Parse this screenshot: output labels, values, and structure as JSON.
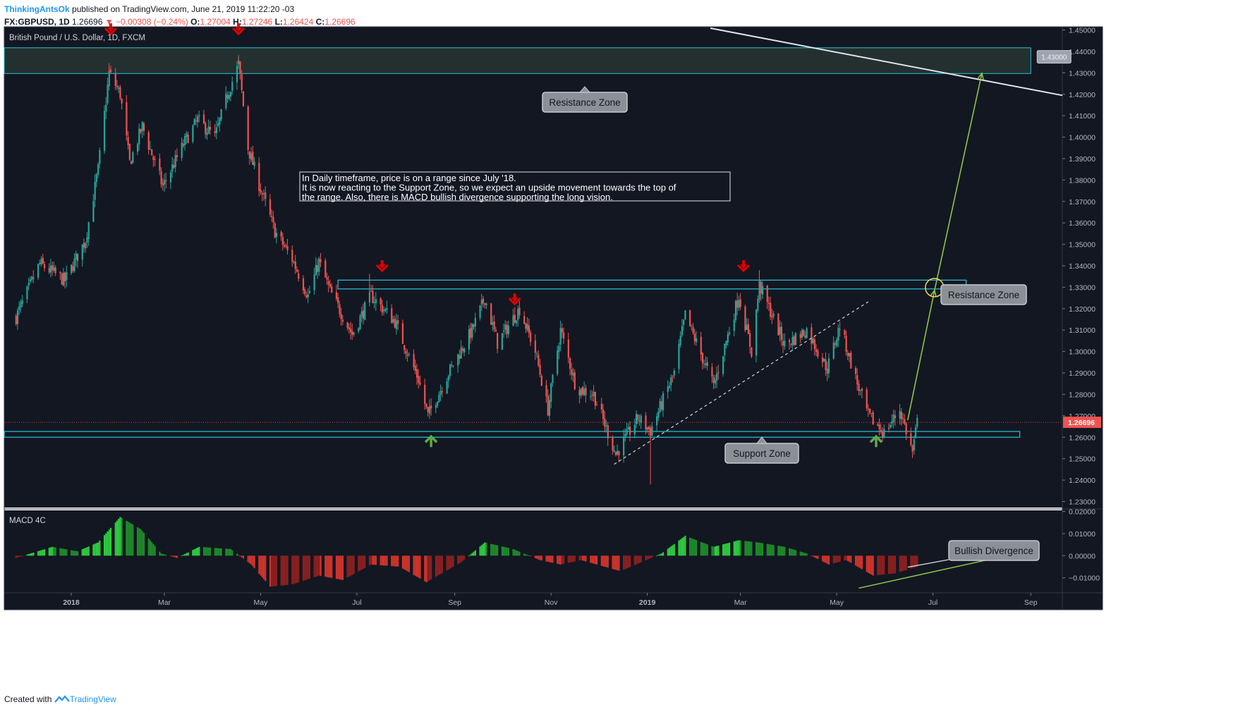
{
  "header": {
    "author": "ThinkingAntsOk",
    "published": "published on TradingView.com, June 21, 2019 11:22:20 -03",
    "symbol": "FX:GBPUSD, 1D",
    "last": "1.26696",
    "change": "−0.00308 (−0.24%)",
    "o_label": "O:",
    "o": "1.27004",
    "h_label": "H:",
    "h": "1.27246",
    "l_label": "L:",
    "l": "1.26424",
    "c_label": "C:",
    "c": "1.26696"
  },
  "footer": {
    "created": "Created with",
    "brand": "TradingView"
  },
  "colors": {
    "background": "#131722",
    "up": "#26a69a",
    "down": "#ef5350",
    "zone": "#26c6da",
    "macd_up": "#2ecc40",
    "macd_down": "#d0342c",
    "arrow_down": "#e00000",
    "arrow_up": "#5fa84a",
    "projection": "#8bc34a"
  },
  "chart_data": [
    {
      "type": "candlestick",
      "title": "British Pound / U.S. Dollar, 1D, FXCM",
      "x_labels": [
        "2018",
        "Mar",
        "May",
        "Jul",
        "Sep",
        "Nov",
        "2019",
        "Mar",
        "May",
        "Jul",
        "Sep"
      ],
      "x_label_dates": [
        "2018-01-01",
        "2018-03-01",
        "2018-05-01",
        "2018-07-01",
        "2018-09-01",
        "2018-11-01",
        "2019-01-01",
        "2019-03-01",
        "2019-05-01",
        "2019-07-01",
        "2019-09-01"
      ],
      "y_ticks": [
        "1.45000",
        "1.44000",
        "1.43000",
        "1.42000",
        "1.41000",
        "1.40000",
        "1.39000",
        "1.38000",
        "1.37000",
        "1.36000",
        "1.35000",
        "1.34000",
        "1.33000",
        "1.32000",
        "1.31000",
        "1.30000",
        "1.29000",
        "1.28000",
        "1.27000",
        "1.26000",
        "1.25000",
        "1.24000",
        "1.23000"
      ],
      "ylim": [
        1.2272,
        1.4515
      ],
      "price_path": [
        [
          "2017-11-27",
          1.316
        ],
        [
          "2017-12-12",
          1.341
        ],
        [
          "2017-12-28",
          1.333
        ],
        [
          "2018-01-10",
          1.352
        ],
        [
          "2018-01-18",
          1.385
        ],
        [
          "2018-01-25",
          1.43
        ],
        [
          "2018-02-01",
          1.42
        ],
        [
          "2018-02-07",
          1.388
        ],
        [
          "2018-02-15",
          1.405
        ],
        [
          "2018-02-28",
          1.377
        ],
        [
          "2018-03-14",
          1.398
        ],
        [
          "2018-03-22",
          1.408
        ],
        [
          "2018-04-02",
          1.4
        ],
        [
          "2018-04-10",
          1.42
        ],
        [
          "2018-04-17",
          1.434
        ],
        [
          "2018-04-23",
          1.395
        ],
        [
          "2018-04-30",
          1.378
        ],
        [
          "2018-05-10",
          1.356
        ],
        [
          "2018-05-21",
          1.343
        ],
        [
          "2018-05-31",
          1.326
        ],
        [
          "2018-06-07",
          1.342
        ],
        [
          "2018-06-14",
          1.328
        ],
        [
          "2018-06-28",
          1.308
        ],
        [
          "2018-07-10",
          1.326
        ],
        [
          "2018-07-25",
          1.314
        ],
        [
          "2018-08-09",
          1.287
        ],
        [
          "2018-08-15",
          1.27
        ],
        [
          "2018-08-28",
          1.29
        ],
        [
          "2018-09-12",
          1.31
        ],
        [
          "2018-09-20",
          1.325
        ],
        [
          "2018-09-28",
          1.304
        ],
        [
          "2018-10-12",
          1.32
        ],
        [
          "2018-10-22",
          1.3
        ],
        [
          "2018-10-30",
          1.273
        ],
        [
          "2018-11-07",
          1.31
        ],
        [
          "2018-11-17",
          1.283
        ],
        [
          "2018-11-28",
          1.28
        ],
        [
          "2018-12-12",
          1.252
        ],
        [
          "2018-12-26",
          1.269
        ],
        [
          "2019-01-03",
          1.263
        ],
        [
          "2019-01-18",
          1.29
        ],
        [
          "2019-01-25",
          1.317
        ],
        [
          "2019-02-12",
          1.284
        ],
        [
          "2019-02-28",
          1.326
        ],
        [
          "2019-03-08",
          1.3
        ],
        [
          "2019-03-13",
          1.331
        ],
        [
          "2019-03-29",
          1.303
        ],
        [
          "2019-04-12",
          1.31
        ],
        [
          "2019-04-25",
          1.292
        ],
        [
          "2019-05-03",
          1.312
        ],
        [
          "2019-05-14",
          1.285
        ],
        [
          "2019-05-21",
          1.27
        ],
        [
          "2019-05-31",
          1.262
        ],
        [
          "2019-06-10",
          1.273
        ],
        [
          "2019-06-18",
          1.253
        ],
        [
          "2019-06-21",
          1.267
        ]
      ],
      "last_price_label": "1.26696",
      "projection_label": "1.43000",
      "annotations": {
        "note": [
          "In Daily timeframe, price is on a range since July '18.",
          "It is now reacting to the Support Zone, so we expect an upside movement towards the top of",
          "the range. Also, there is MACD bullish divergence supporting the long vision."
        ],
        "resistance_top": "Resistance Zone",
        "resistance_mid": "Resistance Zone",
        "support": "Support Zone"
      }
    },
    {
      "type": "bar",
      "title": "MACD 4C",
      "y_ticks": [
        "0.02000",
        "0.01000",
        "0.00000",
        "−0.01000"
      ],
      "ylim": [
        -0.0168,
        0.0205
      ],
      "histogram_path": [
        [
          "2017-11-27",
          -0.001
        ],
        [
          "2017-12-20",
          0.004
        ],
        [
          "2018-01-05",
          0.002
        ],
        [
          "2018-01-18",
          0.006
        ],
        [
          "2018-02-01",
          0.0175
        ],
        [
          "2018-02-14",
          0.012
        ],
        [
          "2018-02-27",
          0.001
        ],
        [
          "2018-03-09",
          -0.001
        ],
        [
          "2018-03-23",
          0.004
        ],
        [
          "2018-04-12",
          0.003
        ],
        [
          "2018-04-25",
          -0.004
        ],
        [
          "2018-05-07",
          -0.014
        ],
        [
          "2018-05-21",
          -0.013
        ],
        [
          "2018-06-07",
          -0.009
        ],
        [
          "2018-06-22",
          -0.011
        ],
        [
          "2018-07-10",
          -0.004
        ],
        [
          "2018-07-28",
          -0.005
        ],
        [
          "2018-08-14",
          -0.012
        ],
        [
          "2018-09-05",
          -0.003
        ],
        [
          "2018-09-20",
          0.006
        ],
        [
          "2018-10-08",
          0.003
        ],
        [
          "2018-10-25",
          -0.002
        ],
        [
          "2018-11-07",
          -0.004
        ],
        [
          "2018-11-20",
          -0.002
        ],
        [
          "2018-12-15",
          -0.007
        ],
        [
          "2018-12-28",
          -0.003
        ],
        [
          "2019-01-10",
          0.001
        ],
        [
          "2019-01-25",
          0.009
        ],
        [
          "2019-02-12",
          0.004
        ],
        [
          "2019-02-28",
          0.007
        ],
        [
          "2019-03-12",
          0.006
        ],
        [
          "2019-03-29",
          0.004
        ],
        [
          "2019-04-12",
          0.001
        ],
        [
          "2019-04-26",
          -0.004
        ],
        [
          "2019-05-07",
          -0.002
        ],
        [
          "2019-05-24",
          -0.009
        ],
        [
          "2019-06-07",
          -0.008
        ],
        [
          "2019-06-21",
          -0.005
        ]
      ],
      "annotation": "Bullish Divergence"
    }
  ]
}
